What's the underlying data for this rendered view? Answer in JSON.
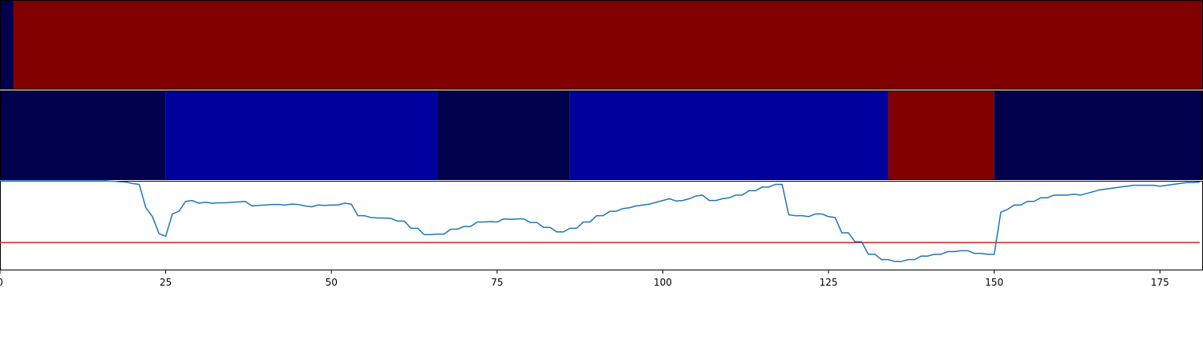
{
  "chart_data": {
    "type": "heatmap",
    "xlim": [
      0,
      181.5
    ],
    "x_ticks": [
      0,
      25,
      50,
      75,
      100,
      125,
      150,
      175
    ],
    "x_tick_labels": [
      "0",
      "25",
      "50",
      "75",
      "100",
      "125",
      "150",
      "175"
    ],
    "panels": [
      {
        "kind": "state-strip",
        "segments": [
          {
            "start": 0,
            "end": 2,
            "color": "#00004c"
          },
          {
            "start": 2,
            "end": 181.5,
            "color": "#800000"
          }
        ]
      },
      {
        "kind": "state-strip",
        "segments": [
          {
            "start": 0,
            "end": 25,
            "color": "#00004c"
          },
          {
            "start": 25,
            "end": 66,
            "color": "#00009c"
          },
          {
            "start": 66,
            "end": 86,
            "color": "#00004c"
          },
          {
            "start": 86,
            "end": 134,
            "color": "#00009c"
          },
          {
            "start": 134,
            "end": 150,
            "color": "#800000"
          },
          {
            "start": 150,
            "end": 181.5,
            "color": "#00004c"
          }
        ]
      },
      {
        "kind": "line",
        "ylim": [
          0,
          1
        ],
        "line_color": "#1f77b4",
        "threshold": 0.31,
        "threshold_color": "#d62728",
        "x": [
          0,
          1,
          2,
          3,
          4,
          5,
          6,
          7,
          8,
          9,
          10,
          11,
          12,
          13,
          14,
          15,
          16,
          17,
          18,
          19,
          20,
          21,
          22,
          23,
          24,
          25,
          26,
          27,
          28,
          29,
          30,
          31,
          32,
          33,
          34,
          35,
          36,
          37,
          38,
          39,
          40,
          41,
          42,
          43,
          44,
          45,
          46,
          47,
          48,
          49,
          50,
          51,
          52,
          53,
          54,
          55,
          56,
          57,
          58,
          59,
          60,
          61,
          62,
          63,
          64,
          65,
          66,
          67,
          68,
          69,
          70,
          71,
          72,
          73,
          74,
          75,
          76,
          77,
          78,
          79,
          80,
          81,
          82,
          83,
          84,
          85,
          86,
          87,
          88,
          89,
          90,
          91,
          92,
          93,
          94,
          95,
          96,
          97,
          98,
          99,
          100,
          101,
          102,
          103,
          104,
          105,
          106,
          107,
          108,
          109,
          110,
          111,
          112,
          113,
          114,
          115,
          116,
          117,
          118,
          119,
          120,
          121,
          122,
          123,
          124,
          125,
          126,
          127,
          128,
          129,
          130,
          131,
          132,
          133,
          134,
          135,
          136,
          137,
          138,
          139,
          140,
          141,
          142,
          143,
          144,
          145,
          146,
          147,
          148,
          149,
          150,
          151,
          152,
          153,
          154,
          155,
          156,
          157,
          158,
          159,
          160,
          161,
          162,
          163,
          164,
          165,
          166,
          167,
          168,
          169,
          170,
          171,
          172,
          173,
          174,
          175,
          176,
          177,
          178,
          179,
          180,
          181
        ],
        "y": [
          1.0,
          1.0,
          1.0,
          1.0,
          1.0,
          1.0,
          1.0,
          1.0,
          1.0,
          1.0,
          1.0,
          1.0,
          1.0,
          1.0,
          1.0,
          1.0,
          1.0,
          0.995,
          0.99,
          0.985,
          0.97,
          0.96,
          0.7,
          0.6,
          0.41,
          0.38,
          0.63,
          0.66,
          0.77,
          0.78,
          0.75,
          0.76,
          0.75,
          0.755,
          0.755,
          0.76,
          0.765,
          0.77,
          0.72,
          0.725,
          0.73,
          0.735,
          0.735,
          0.73,
          0.74,
          0.735,
          0.72,
          0.71,
          0.73,
          0.725,
          0.73,
          0.73,
          0.75,
          0.74,
          0.61,
          0.61,
          0.59,
          0.585,
          0.585,
          0.58,
          0.55,
          0.55,
          0.47,
          0.47,
          0.4,
          0.4,
          0.405,
          0.405,
          0.46,
          0.46,
          0.49,
          0.49,
          0.54,
          0.54,
          0.545,
          0.54,
          0.575,
          0.57,
          0.575,
          0.575,
          0.535,
          0.535,
          0.48,
          0.48,
          0.43,
          0.43,
          0.47,
          0.47,
          0.54,
          0.54,
          0.61,
          0.61,
          0.66,
          0.66,
          0.69,
          0.7,
          0.72,
          0.73,
          0.74,
          0.76,
          0.78,
          0.8,
          0.775,
          0.78,
          0.8,
          0.83,
          0.84,
          0.78,
          0.78,
          0.8,
          0.81,
          0.84,
          0.84,
          0.89,
          0.89,
          0.93,
          0.93,
          0.96,
          0.96,
          0.62,
          0.61,
          0.61,
          0.6,
          0.63,
          0.63,
          0.6,
          0.59,
          0.42,
          0.42,
          0.32,
          0.32,
          0.18,
          0.18,
          0.12,
          0.12,
          0.1,
          0.1,
          0.12,
          0.12,
          0.16,
          0.16,
          0.18,
          0.18,
          0.21,
          0.21,
          0.22,
          0.22,
          0.19,
          0.19,
          0.18,
          0.18,
          0.65,
          0.68,
          0.73,
          0.73,
          0.77,
          0.77,
          0.81,
          0.81,
          0.84,
          0.84,
          0.84,
          0.85,
          0.84,
          0.86,
          0.88,
          0.9,
          0.91,
          0.92,
          0.93,
          0.94,
          0.95,
          0.95,
          0.95,
          0.95,
          0.94,
          0.95,
          0.96,
          0.97,
          0.98,
          0.98,
          0.985
        ]
      }
    ]
  }
}
